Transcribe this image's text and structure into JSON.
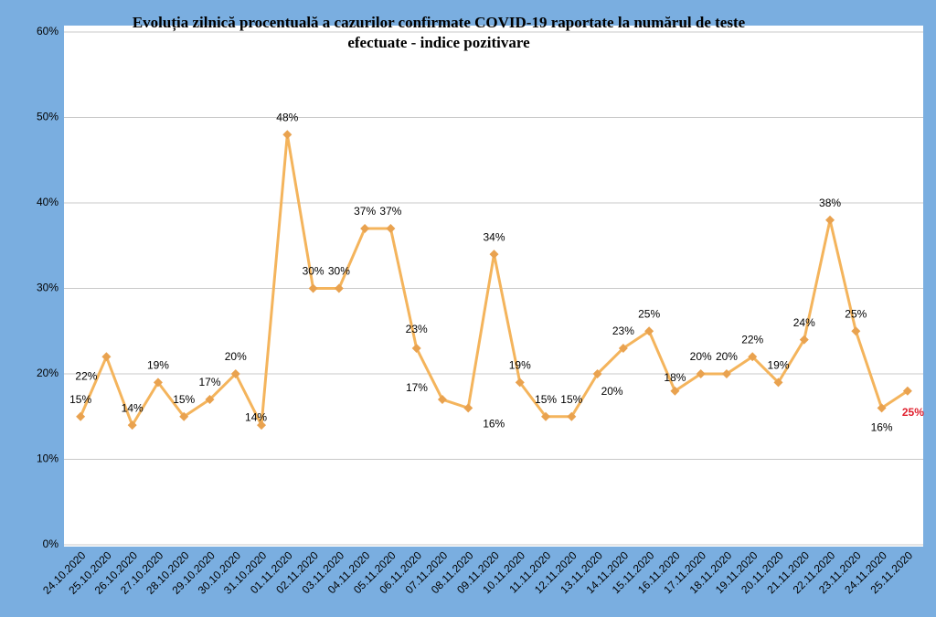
{
  "chart_data": {
    "type": "line",
    "title": "Evoluția zilnică procentuală a cazurilor confirmate COVID-19 raportate la numărul de teste efectuate - indice pozitivare",
    "categories": [
      "24.10.2020",
      "25.10.2020",
      "26.10.2020",
      "27.10.2020",
      "28.10.2020",
      "29.10.2020",
      "30.10.2020",
      "31.10.2020",
      "01.11.2020",
      "02.11.2020",
      "03.11.2020",
      "04.11.2020",
      "05.11.2020",
      "06.11.2020",
      "07.11.2020",
      "08.11.2020",
      "09.11.2020",
      "10.11.2020",
      "11.11.2020",
      "12.11.2020",
      "13.11.2020",
      "14.11.2020",
      "15.11.2020",
      "16.11.2020",
      "17.11.2020",
      "18.11.2020",
      "19.11.2020",
      "20.11.2020",
      "21.11.2020",
      "22.11.2020",
      "23.11.2020",
      "24.11.2020",
      "25.11.2020"
    ],
    "values": [
      15,
      22,
      14,
      19,
      15,
      17,
      20,
      14,
      48,
      30,
      30,
      37,
      37,
      23,
      17,
      16,
      34,
      19,
      15,
      15,
      20,
      23,
      25,
      18,
      20,
      20,
      22,
      19,
      24,
      38,
      25,
      16,
      18
    ],
    "value_labels": [
      "15%",
      "22%",
      "14%",
      "19%",
      "15%",
      "17%",
      "20%",
      "14%",
      "48%",
      "30%",
      "30%",
      "37%",
      "37%",
      "23%",
      "17%",
      "16%",
      "34%",
      "19%",
      "15%",
      "15%",
      "20%",
      "23%",
      "25%",
      "18%",
      "20%",
      "20%",
      "22%",
      "19%",
      "24%",
      "38%",
      "25%",
      "16%",
      null
    ],
    "annotation": "25%",
    "annotation_color": "#e0202e",
    "color": "#f4b45c",
    "marker_color": "#e9a24f",
    "ylim": [
      0,
      60
    ],
    "yticks": [
      {
        "value": 0,
        "label": "0%"
      },
      {
        "value": 10,
        "label": "10%"
      },
      {
        "value": 20,
        "label": "20%"
      },
      {
        "value": 30,
        "label": "30%"
      },
      {
        "value": 40,
        "label": "40%"
      },
      {
        "value": 50,
        "label": "50%"
      },
      {
        "value": 60,
        "label": "60%"
      }
    ],
    "grid": true
  }
}
